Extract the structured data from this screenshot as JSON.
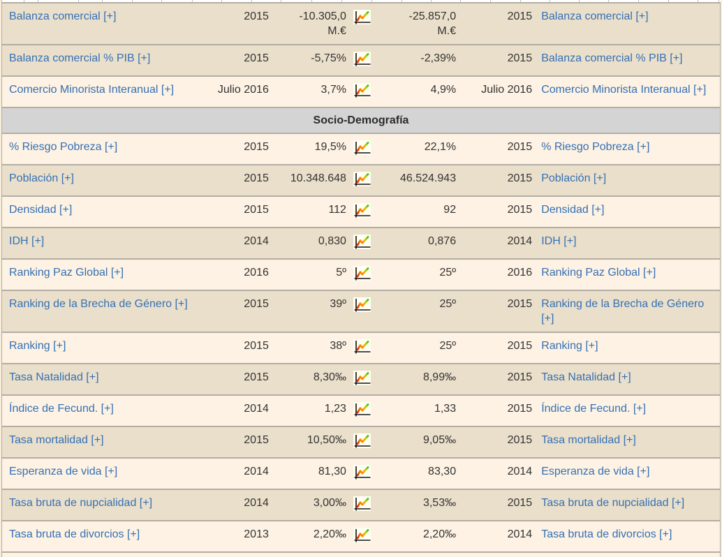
{
  "icons": {
    "trend": "line-chart-icon"
  },
  "colors": {
    "row_tan": "#eadfca",
    "row_cream": "#fdf2e3",
    "section_bg": "#d4d4d4",
    "link_blue": "#3570b4",
    "border": "#b3ada3",
    "trend_red": "#dd2200",
    "trend_orange": "#ff9900",
    "trend_green": "#33cc11"
  },
  "rows": [
    {
      "type": "data",
      "shade": "tan",
      "left": {
        "label": "Balanza comercial [+]",
        "year": "2015",
        "value": "-10.305,0",
        "unit": "M.€"
      },
      "right": {
        "value": "-25.857,0",
        "unit": "M.€",
        "year": "2015",
        "label": "Balanza comercial [+]"
      }
    },
    {
      "type": "data",
      "shade": "tan",
      "left": {
        "label": "Balanza comercial % PIB [+]",
        "year": "2015",
        "value": "-5,75%"
      },
      "right": {
        "value": "-2,39%",
        "year": "2015",
        "label": "Balanza comercial % PIB [+]"
      }
    },
    {
      "type": "data",
      "shade": "cream",
      "left": {
        "label": "Comercio Minorista Interanual [+]",
        "year": "Julio 2016",
        "value": "3,7%"
      },
      "right": {
        "value": "4,9%",
        "year": "Julio 2016",
        "label": "Comercio Minorista Interanual [+]"
      }
    },
    {
      "type": "section",
      "label": "Socio-Demografía"
    },
    {
      "type": "data",
      "shade": "cream",
      "left": {
        "label": "% Riesgo Pobreza [+]",
        "year": "2015",
        "value": "19,5%"
      },
      "right": {
        "value": "22,1%",
        "year": "2015",
        "label": "% Riesgo Pobreza [+]"
      }
    },
    {
      "type": "data",
      "shade": "tan",
      "left": {
        "label": "Población [+]",
        "year": "2015",
        "value": "10.348.648"
      },
      "right": {
        "value": "46.524.943",
        "year": "2015",
        "label": "Población [+]"
      }
    },
    {
      "type": "data",
      "shade": "cream",
      "left": {
        "label": "Densidad [+]",
        "year": "2015",
        "value": "112"
      },
      "right": {
        "value": "92",
        "year": "2015",
        "label": "Densidad [+]"
      }
    },
    {
      "type": "data",
      "shade": "tan",
      "left": {
        "label": "IDH [+]",
        "year": "2014",
        "value": "0,830"
      },
      "right": {
        "value": "0,876",
        "year": "2014",
        "label": "IDH [+]"
      }
    },
    {
      "type": "data",
      "shade": "cream",
      "left": {
        "label": "Ranking Paz Global [+]",
        "year": "2016",
        "value": "5º"
      },
      "right": {
        "value": "25º",
        "year": "2016",
        "label": "Ranking Paz Global [+]"
      }
    },
    {
      "type": "data",
      "shade": "tan",
      "left": {
        "label": "Ranking de la Brecha de Género [+]",
        "year": "2015",
        "value": "39º"
      },
      "right": {
        "value": "25º",
        "year": "2015",
        "label": "Ranking de la Brecha de Género [+]"
      }
    },
    {
      "type": "data",
      "shade": "cream",
      "left": {
        "label": "Ranking [+]",
        "year": "2015",
        "value": "38º"
      },
      "right": {
        "value": "25º",
        "year": "2015",
        "label": "Ranking [+]"
      }
    },
    {
      "type": "data",
      "shade": "tan",
      "left": {
        "label": "Tasa Natalidad [+]",
        "year": "2015",
        "value": "8,30‰"
      },
      "right": {
        "value": "8,99‰",
        "year": "2015",
        "label": "Tasa Natalidad [+]"
      }
    },
    {
      "type": "data",
      "shade": "cream",
      "left": {
        "label": "Índice de Fecund. [+]",
        "year": "2014",
        "value": "1,23"
      },
      "right": {
        "value": "1,33",
        "year": "2015",
        "label": "Índice de Fecund. [+]"
      }
    },
    {
      "type": "data",
      "shade": "tan",
      "left": {
        "label": "Tasa mortalidad [+]",
        "year": "2015",
        "value": "10,50‰"
      },
      "right": {
        "value": "9,05‰",
        "year": "2015",
        "label": "Tasa mortalidad [+]"
      }
    },
    {
      "type": "data",
      "shade": "cream",
      "left": {
        "label": "Esperanza de vida [+]",
        "year": "2014",
        "value": "81,30"
      },
      "right": {
        "value": "83,30",
        "year": "2014",
        "label": "Esperanza de vida [+]"
      }
    },
    {
      "type": "data",
      "shade": "tan",
      "left": {
        "label": "Tasa bruta de nupcialidad [+]",
        "year": "2014",
        "value": "3,00‰"
      },
      "right": {
        "value": "3,53‰",
        "year": "2015",
        "label": "Tasa bruta de nupcialidad [+]"
      }
    },
    {
      "type": "data",
      "shade": "cream",
      "left": {
        "label": "Tasa bruta de divorcios [+]",
        "year": "2013",
        "value": "2,20‰"
      },
      "right": {
        "value": "2,20‰",
        "year": "2014",
        "label": "Tasa bruta de divorcios [+]"
      }
    }
  ]
}
